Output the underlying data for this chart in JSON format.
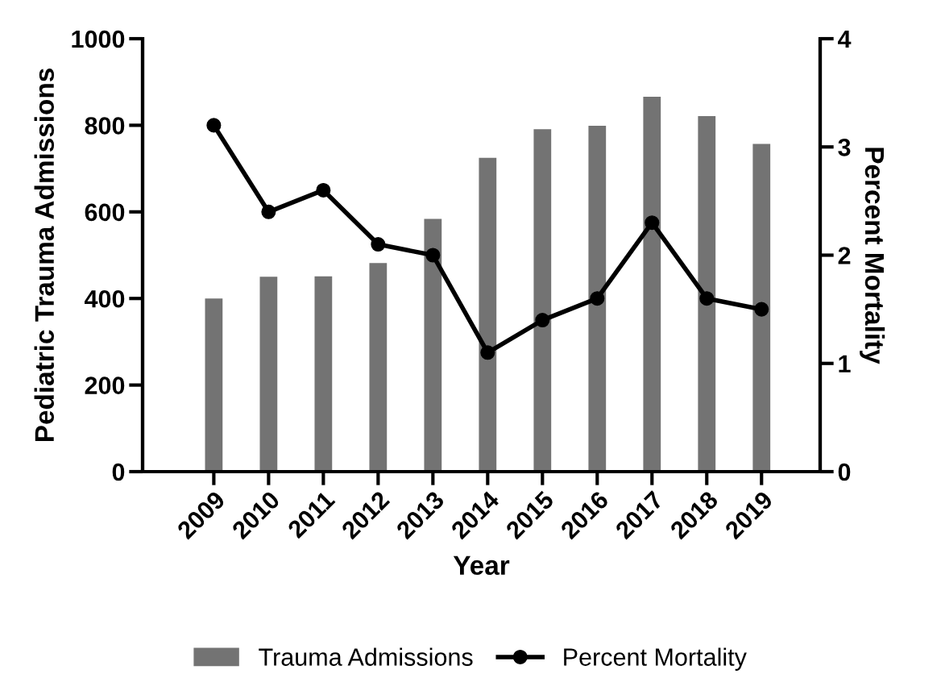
{
  "chart_data": {
    "type": "bar",
    "xlabel": "Year",
    "ylabel": "Pediatric Trauma Admissions",
    "y2label": "Percent Mortality",
    "categories": [
      "2009",
      "2010",
      "2011",
      "2012",
      "2013",
      "2014",
      "2015",
      "2016",
      "2017",
      "2018",
      "2019"
    ],
    "series": [
      {
        "name": "Trauma Admissions",
        "color": "#737373",
        "values": [
          400,
          450,
          451,
          482,
          584,
          725,
          791,
          799,
          866,
          821,
          757
        ]
      },
      {
        "name": "Percent Mortality",
        "type": "line",
        "axis": "y2",
        "color": "#000000",
        "marker": "circle",
        "values": [
          3.2,
          2.4,
          2.6,
          2.1,
          2.0,
          1.1,
          1.4,
          1.6,
          2.3,
          1.6,
          1.5
        ]
      }
    ],
    "ylim": [
      0,
      1000
    ],
    "yticks": [
      0,
      200,
      400,
      600,
      800,
      1000
    ],
    "y2lim": [
      0,
      4
    ],
    "y2ticks": [
      0,
      1,
      2,
      3,
      4
    ],
    "grid": false,
    "legend": "bottom"
  }
}
